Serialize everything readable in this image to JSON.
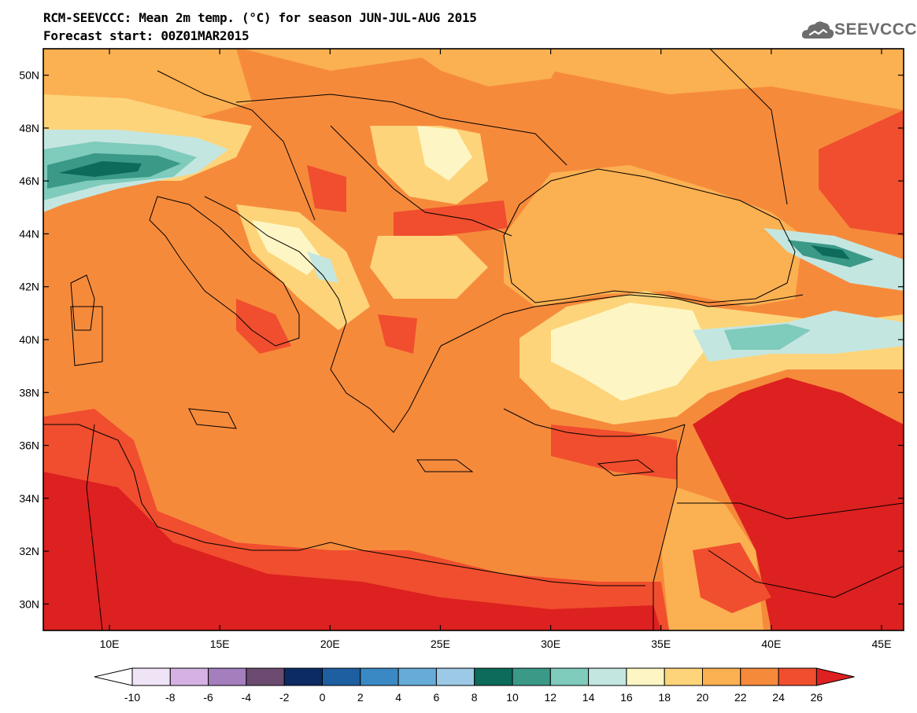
{
  "title_line1": "RCM-SEEVCCC: Mean 2m temp. (°C) for season JUN-JUL-AUG 2015",
  "title_line2": "Forecast start: 00Z01MAR2015",
  "logo_text": "SEEVCCC",
  "map": {
    "lon_range": [
      7,
      46
    ],
    "lat_range": [
      29,
      51
    ],
    "lat_ticks": [
      {
        "value": 50,
        "label": "50N"
      },
      {
        "value": 48,
        "label": "48N"
      },
      {
        "value": 46,
        "label": "46N"
      },
      {
        "value": 44,
        "label": "44N"
      },
      {
        "value": 42,
        "label": "42N"
      },
      {
        "value": 40,
        "label": "40N"
      },
      {
        "value": 38,
        "label": "38N"
      },
      {
        "value": 36,
        "label": "36N"
      },
      {
        "value": 34,
        "label": "34N"
      },
      {
        "value": 32,
        "label": "32N"
      },
      {
        "value": 30,
        "label": "30N"
      }
    ],
    "lon_ticks": [
      {
        "value": 10,
        "label": "10E"
      },
      {
        "value": 15,
        "label": "15E"
      },
      {
        "value": 20,
        "label": "20E"
      },
      {
        "value": 25,
        "label": "25E"
      },
      {
        "value": 30,
        "label": "30E"
      },
      {
        "value": 35,
        "label": "35E"
      },
      {
        "value": 40,
        "label": "40E"
      },
      {
        "value": 45,
        "label": "45E"
      }
    ]
  },
  "colorbar": {
    "labels": [
      "-10",
      "-8",
      "-6",
      "-4",
      "-2",
      "0",
      "2",
      "4",
      "6",
      "8",
      "10",
      "12",
      "14",
      "16",
      "18",
      "20",
      "22",
      "24",
      "26"
    ],
    "under_color": "#ffffff",
    "over_color": "#dd2020",
    "colors": [
      "#efe4f5",
      "#d6b2e4",
      "#a57ebd",
      "#6b4c70",
      "#0c2a63",
      "#1d5fa0",
      "#3b89c4",
      "#67acd8",
      "#9bc9e6",
      "#0c6b5a",
      "#3a9987",
      "#7fcbbc",
      "#c4e6e1",
      "#fdf6c4",
      "#fdd47a",
      "#fbb051",
      "#f68a3b",
      "#f04e2e"
    ]
  }
}
